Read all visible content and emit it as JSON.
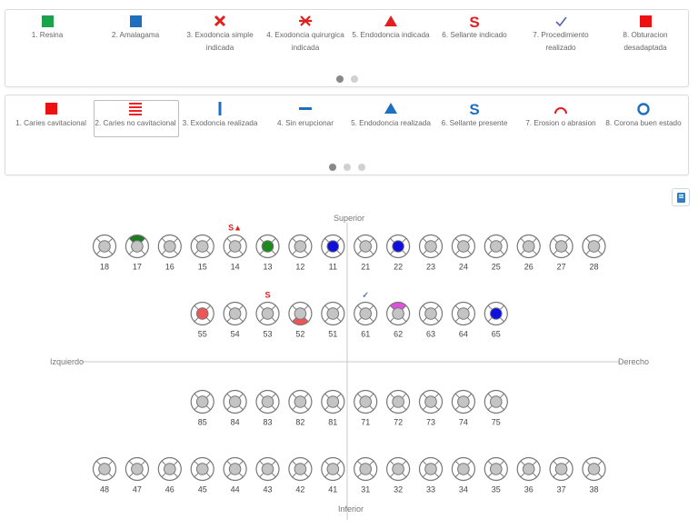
{
  "legend1": {
    "items": [
      {
        "label": "1. Resina",
        "icon": "green-square-icon",
        "color": "#1aa34a"
      },
      {
        "label": "2. Amalagama",
        "icon": "blue-square-icon",
        "color": "#1f6fc1"
      },
      {
        "label": "3. Exodoncia simple indicada",
        "icon": "red-x-icon",
        "color": "#e02020"
      },
      {
        "label": "4. Exodoncia quirurgica indicada",
        "icon": "red-double-x-icon",
        "color": "#e02020"
      },
      {
        "label": "5. Endodoncia indicada",
        "icon": "red-triangle-icon",
        "color": "#e02020"
      },
      {
        "label": "6. Sellante indicado",
        "icon": "red-s-icon",
        "color": "#e02020"
      },
      {
        "label": "7. Procedimiento realizado",
        "icon": "check-icon",
        "color": "#5566aa"
      },
      {
        "label": "8. Obturacion desadaptada",
        "icon": "red-square-icon",
        "color": "#ee1111"
      }
    ],
    "pages": 2,
    "active_page": 1
  },
  "legend2": {
    "items": [
      {
        "label": "1. Caries cavitacional",
        "icon": "red-square-icon",
        "color": "#ee1111"
      },
      {
        "label": "2. Caries no cavitacional",
        "icon": "red-lines-icon",
        "color": "#ee2222"
      },
      {
        "label": "3. Exodoncia realizada",
        "icon": "blue-vertical-bar-icon",
        "color": "#1f6fc1"
      },
      {
        "label": "4. Sin erupcionar",
        "icon": "blue-horizontal-bar-icon",
        "color": "#1f6fc1"
      },
      {
        "label": "5. Endodoncia realizada",
        "icon": "blue-triangle-icon",
        "color": "#1f6fc1"
      },
      {
        "label": "6. Sellante presente",
        "icon": "blue-s-icon",
        "color": "#1f6fc1"
      },
      {
        "label": "7. Erosion o abrasion",
        "icon": "red-arc-icon",
        "color": "#e02020"
      },
      {
        "label": "8. Corona buen estado",
        "icon": "blue-ring-icon",
        "color": "#1f6fc1"
      }
    ],
    "selected_index": 1,
    "pages": 3,
    "active_page": 1
  },
  "chart": {
    "axis": {
      "top": "Superior",
      "bottom": "Inferior",
      "left": "Izquierdo",
      "right": "Derecho"
    },
    "rows": [
      {
        "teeth": [
          "18",
          "17",
          "16",
          "15",
          "14",
          "13",
          "12",
          "11",
          "21",
          "22",
          "23",
          "24",
          "25",
          "26",
          "27",
          "28"
        ],
        "start_col": 0
      },
      {
        "teeth": [
          "55",
          "54",
          "53",
          "52",
          "51",
          "61",
          "62",
          "63",
          "64",
          "65"
        ],
        "start_col": 3
      },
      {
        "teeth": [
          "85",
          "84",
          "83",
          "82",
          "81",
          "71",
          "72",
          "73",
          "74",
          "75"
        ],
        "start_col": 3
      },
      {
        "teeth": [
          "48",
          "47",
          "46",
          "45",
          "44",
          "43",
          "42",
          "41",
          "31",
          "32",
          "33",
          "34",
          "35",
          "36",
          "37",
          "38"
        ],
        "start_col": 0
      }
    ],
    "marks": {
      "17": {
        "top": "#1e7a1e"
      },
      "13": {
        "center": "#1e8a1e"
      },
      "11": {
        "center": "#1010dd"
      },
      "22": {
        "center": "#1010dd"
      },
      "55": {
        "center": "#ee5555"
      },
      "52": {
        "bottom": "#ee5555"
      },
      "62": {
        "top": "#e050e0"
      },
      "65": {
        "center": "#1010dd"
      }
    },
    "annotations": [
      {
        "tooth": "14",
        "text": "S▲",
        "color": "#e02020"
      },
      {
        "tooth": "53",
        "text": "S",
        "color": "#e02020"
      },
      {
        "tooth": "61",
        "text": "✓",
        "color": "#5566aa"
      }
    ],
    "colors": {
      "tooth_outline": "#777777",
      "tooth_center": "#c4c4c4",
      "axis": "#c8c8c8"
    }
  },
  "toolbar": {
    "book_icon": "book-icon"
  }
}
